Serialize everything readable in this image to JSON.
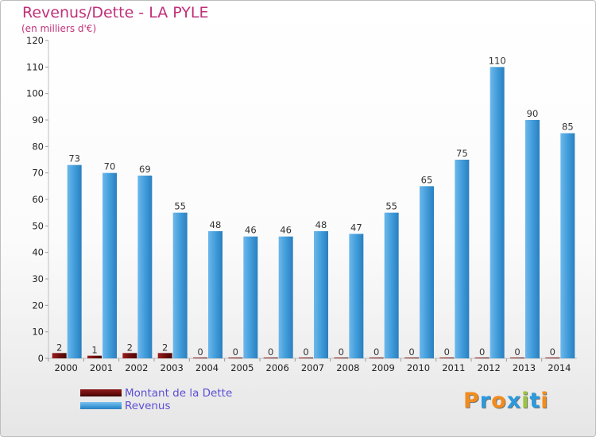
{
  "header": {
    "title": "Revenus/Dette - LA PYLE",
    "subtitle": "(en milliers d'€)"
  },
  "logo": {
    "text": "Proxiti",
    "colors": [
      "#f28c1e",
      "#2b9adf",
      "#f28c1e",
      "#2b9adf",
      "#9ac63b",
      "#2b9adf",
      "#f28c1e"
    ]
  },
  "colors": {
    "dette": "#6b0d0d",
    "revenus": "#3f9ad8",
    "axis": "#bfbfbf"
  },
  "chart_data": {
    "type": "bar",
    "title": "Revenus/Dette - LA PYLE",
    "subtitle": "(en milliers d'€)",
    "categories": [
      "2000",
      "2001",
      "2002",
      "2003",
      "2004",
      "2005",
      "2006",
      "2007",
      "2008",
      "2009",
      "2010",
      "2011",
      "2012",
      "2013",
      "2014"
    ],
    "series": [
      {
        "name": "Montant de la Dette",
        "values": [
          2,
          1,
          2,
          2,
          0,
          0,
          0,
          0,
          0,
          0,
          0,
          0,
          0,
          0,
          0
        ]
      },
      {
        "name": "Revenus",
        "values": [
          73,
          70,
          69,
          55,
          48,
          46,
          46,
          48,
          47,
          55,
          65,
          75,
          110,
          90,
          85
        ]
      }
    ],
    "ylim": [
      0,
      120
    ],
    "yticks": [
      0,
      10,
      20,
      30,
      40,
      50,
      60,
      70,
      80,
      90,
      100,
      110,
      120
    ],
    "grid": false,
    "legend": "bottom-left"
  }
}
